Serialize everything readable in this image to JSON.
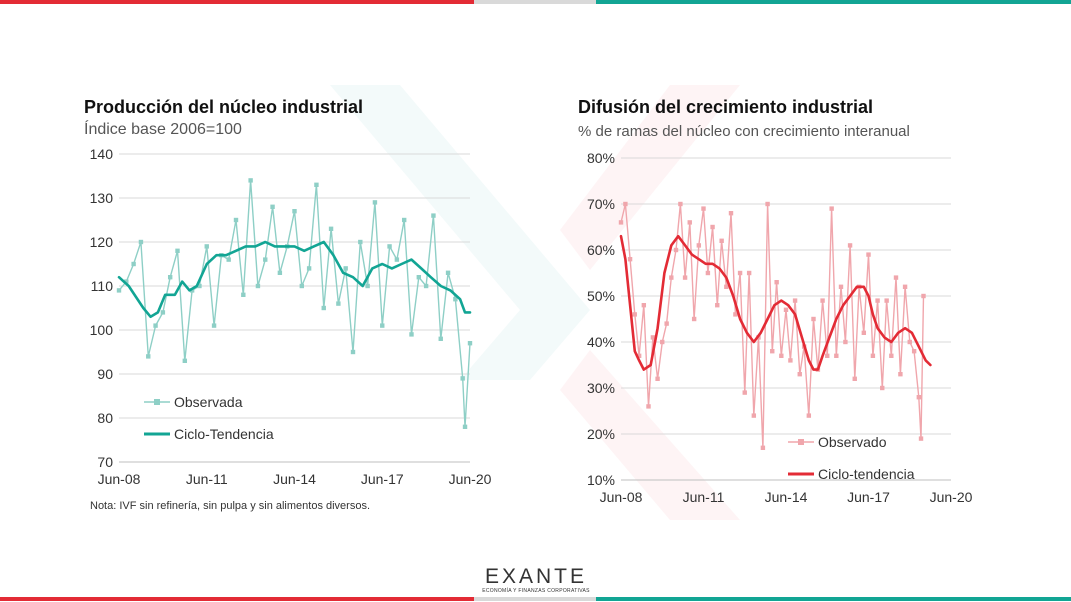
{
  "colors": {
    "red": "#e32b35",
    "teal": "#12a594",
    "gray": "#d9d9d9",
    "light_teal": "#8ecfc6",
    "light_pink": "#f0a6ac"
  },
  "logo": {
    "name": "EXANTE",
    "tagline": "ECONOMÍA Y FINANZAS CORPORATIVAS"
  },
  "chart_data": [
    {
      "type": "line",
      "title": "Producción del núcleo industrial",
      "subtitle": "Índice base 2006=100",
      "note": "Nota: IVF sin refinería, sin pulpa y sin alimentos diversos.",
      "ylim": [
        70,
        140
      ],
      "yticks": [
        "140",
        "130",
        "120",
        "110",
        "100",
        "90",
        "80",
        "70"
      ],
      "xticks": [
        "Jun-08",
        "Jun-11",
        "Jun-14",
        "Jun-17",
        "Jun-20"
      ],
      "x_range": [
        2008.42,
        2020.42
      ],
      "series": [
        {
          "name": "Observada",
          "color": "#8ecfc6",
          "marker": true,
          "points": [
            [
              2008.42,
              109
            ],
            [
              2008.67,
              111
            ],
            [
              2008.92,
              115
            ],
            [
              2009.17,
              120
            ],
            [
              2009.42,
              94
            ],
            [
              2009.67,
              101
            ],
            [
              2009.92,
              104
            ],
            [
              2010.17,
              112
            ],
            [
              2010.42,
              118
            ],
            [
              2010.67,
              93
            ],
            [
              2010.92,
              109
            ],
            [
              2011.17,
              110
            ],
            [
              2011.42,
              119
            ],
            [
              2011.67,
              101
            ],
            [
              2011.92,
              117
            ],
            [
              2012.17,
              116
            ],
            [
              2012.42,
              125
            ],
            [
              2012.67,
              108
            ],
            [
              2012.92,
              134
            ],
            [
              2013.17,
              110
            ],
            [
              2013.42,
              116
            ],
            [
              2013.67,
              128
            ],
            [
              2013.92,
              113
            ],
            [
              2014.17,
              119
            ],
            [
              2014.42,
              127
            ],
            [
              2014.67,
              110
            ],
            [
              2014.92,
              114
            ],
            [
              2015.17,
              133
            ],
            [
              2015.42,
              105
            ],
            [
              2015.67,
              123
            ],
            [
              2015.92,
              106
            ],
            [
              2016.17,
              114
            ],
            [
              2016.42,
              95
            ],
            [
              2016.67,
              120
            ],
            [
              2016.92,
              110
            ],
            [
              2017.17,
              129
            ],
            [
              2017.42,
              101
            ],
            [
              2017.67,
              119
            ],
            [
              2017.92,
              116
            ],
            [
              2018.17,
              125
            ],
            [
              2018.42,
              99
            ],
            [
              2018.67,
              112
            ],
            [
              2018.92,
              110
            ],
            [
              2019.17,
              126
            ],
            [
              2019.42,
              98
            ],
            [
              2019.67,
              113
            ],
            [
              2019.92,
              107
            ],
            [
              2020.17,
              89
            ],
            [
              2020.25,
              78
            ],
            [
              2020.42,
              97
            ]
          ]
        },
        {
          "name": "Ciclo-Tendencia",
          "color": "#12a594",
          "marker": false,
          "points": [
            [
              2008.42,
              112
            ],
            [
              2008.75,
              110
            ],
            [
              2009.25,
              105
            ],
            [
              2009.5,
              103
            ],
            [
              2009.75,
              104
            ],
            [
              2010.0,
              108
            ],
            [
              2010.33,
              108
            ],
            [
              2010.58,
              111
            ],
            [
              2010.83,
              109
            ],
            [
              2011.08,
              110
            ],
            [
              2011.42,
              115
            ],
            [
              2011.75,
              117
            ],
            [
              2012.08,
              117
            ],
            [
              2012.42,
              118
            ],
            [
              2012.75,
              119
            ],
            [
              2013.08,
              119
            ],
            [
              2013.42,
              120
            ],
            [
              2013.75,
              119
            ],
            [
              2014.08,
              119
            ],
            [
              2014.42,
              119
            ],
            [
              2014.75,
              118
            ],
            [
              2015.08,
              119
            ],
            [
              2015.42,
              120
            ],
            [
              2015.75,
              117
            ],
            [
              2016.08,
              113
            ],
            [
              2016.42,
              112
            ],
            [
              2016.75,
              110
            ],
            [
              2017.08,
              114
            ],
            [
              2017.42,
              115
            ],
            [
              2017.75,
              114
            ],
            [
              2018.08,
              115
            ],
            [
              2018.42,
              116
            ],
            [
              2018.75,
              114
            ],
            [
              2019.08,
              112
            ],
            [
              2019.42,
              110
            ],
            [
              2019.75,
              109
            ],
            [
              2020.08,
              107
            ],
            [
              2020.25,
              104
            ],
            [
              2020.42,
              104
            ]
          ]
        }
      ]
    },
    {
      "type": "line",
      "title": "Difusión del crecimiento industrial",
      "subtitle": "% de ramas del núcleo con crecimiento interanual",
      "ylim": [
        10,
        80
      ],
      "yticks": [
        "80%",
        "70%",
        "60%",
        "50%",
        "40%",
        "30%",
        "20%",
        "10%"
      ],
      "xticks": [
        "Jun-08",
        "Jun-11",
        "Jun-14",
        "Jun-17",
        "Jun-20"
      ],
      "x_range": [
        2008.42,
        2020.42
      ],
      "series": [
        {
          "name": "Observado",
          "color": "#f0a6ac",
          "marker": true,
          "points": [
            [
              2008.42,
              66
            ],
            [
              2008.58,
              70
            ],
            [
              2008.75,
              58
            ],
            [
              2008.92,
              46
            ],
            [
              2009.08,
              37
            ],
            [
              2009.25,
              48
            ],
            [
              2009.42,
              26
            ],
            [
              2009.58,
              41
            ],
            [
              2009.75,
              32
            ],
            [
              2009.92,
              40
            ],
            [
              2010.08,
              44
            ],
            [
              2010.25,
              54
            ],
            [
              2010.42,
              60
            ],
            [
              2010.58,
              70
            ],
            [
              2010.75,
              54
            ],
            [
              2010.92,
              66
            ],
            [
              2011.08,
              45
            ],
            [
              2011.25,
              61
            ],
            [
              2011.42,
              69
            ],
            [
              2011.58,
              55
            ],
            [
              2011.75,
              65
            ],
            [
              2011.92,
              48
            ],
            [
              2012.08,
              62
            ],
            [
              2012.25,
              52
            ],
            [
              2012.42,
              68
            ],
            [
              2012.58,
              46
            ],
            [
              2012.75,
              55
            ],
            [
              2012.92,
              29
            ],
            [
              2013.08,
              55
            ],
            [
              2013.25,
              24
            ],
            [
              2013.42,
              41
            ],
            [
              2013.58,
              17
            ],
            [
              2013.75,
              70
            ],
            [
              2013.92,
              38
            ],
            [
              2014.08,
              53
            ],
            [
              2014.25,
              37
            ],
            [
              2014.42,
              47
            ],
            [
              2014.58,
              36
            ],
            [
              2014.75,
              49
            ],
            [
              2014.92,
              33
            ],
            [
              2015.08,
              39
            ],
            [
              2015.25,
              24
            ],
            [
              2015.42,
              45
            ],
            [
              2015.58,
              34
            ],
            [
              2015.75,
              49
            ],
            [
              2015.92,
              37
            ],
            [
              2016.08,
              69
            ],
            [
              2016.25,
              37
            ],
            [
              2016.42,
              52
            ],
            [
              2016.58,
              40
            ],
            [
              2016.75,
              61
            ],
            [
              2016.92,
              32
            ],
            [
              2017.08,
              52
            ],
            [
              2017.25,
              42
            ],
            [
              2017.42,
              59
            ],
            [
              2017.58,
              37
            ],
            [
              2017.75,
              49
            ],
            [
              2017.92,
              30
            ],
            [
              2018.08,
              49
            ],
            [
              2018.25,
              37
            ],
            [
              2018.42,
              54
            ],
            [
              2018.58,
              33
            ],
            [
              2018.75,
              52
            ],
            [
              2018.92,
              40
            ],
            [
              2019.08,
              38
            ],
            [
              2019.25,
              28
            ],
            [
              2019.33,
              19
            ],
            [
              2019.42,
              50
            ]
          ]
        },
        {
          "name": "Ciclo-tendencia",
          "color": "#e32b35",
          "marker": false,
          "points": [
            [
              2008.42,
              63
            ],
            [
              2008.58,
              58
            ],
            [
              2008.75,
              48
            ],
            [
              2008.92,
              38
            ],
            [
              2009.08,
              36
            ],
            [
              2009.25,
              34
            ],
            [
              2009.5,
              35
            ],
            [
              2009.75,
              43
            ],
            [
              2010.0,
              55
            ],
            [
              2010.25,
              61
            ],
            [
              2010.5,
              63
            ],
            [
              2010.75,
              61
            ],
            [
              2011.0,
              59
            ],
            [
              2011.25,
              58
            ],
            [
              2011.5,
              57
            ],
            [
              2011.75,
              57
            ],
            [
              2012.0,
              56
            ],
            [
              2012.25,
              54
            ],
            [
              2012.5,
              50
            ],
            [
              2012.75,
              45
            ],
            [
              2013.0,
              42
            ],
            [
              2013.25,
              40
            ],
            [
              2013.5,
              42
            ],
            [
              2013.75,
              45
            ],
            [
              2014.0,
              48
            ],
            [
              2014.25,
              49
            ],
            [
              2014.5,
              48
            ],
            [
              2014.75,
              46
            ],
            [
              2015.0,
              41
            ],
            [
              2015.25,
              36
            ],
            [
              2015.42,
              34
            ],
            [
              2015.58,
              34
            ],
            [
              2015.75,
              37
            ],
            [
              2016.0,
              41
            ],
            [
              2016.25,
              45
            ],
            [
              2016.5,
              48
            ],
            [
              2016.75,
              50
            ],
            [
              2017.0,
              52
            ],
            [
              2017.25,
              52
            ],
            [
              2017.42,
              50
            ],
            [
              2017.58,
              46
            ],
            [
              2017.75,
              43
            ],
            [
              2018.0,
              41
            ],
            [
              2018.25,
              40
            ],
            [
              2018.5,
              42
            ],
            [
              2018.75,
              43
            ],
            [
              2019.0,
              42
            ],
            [
              2019.25,
              39
            ],
            [
              2019.5,
              36
            ],
            [
              2019.67,
              35
            ]
          ]
        }
      ]
    }
  ]
}
